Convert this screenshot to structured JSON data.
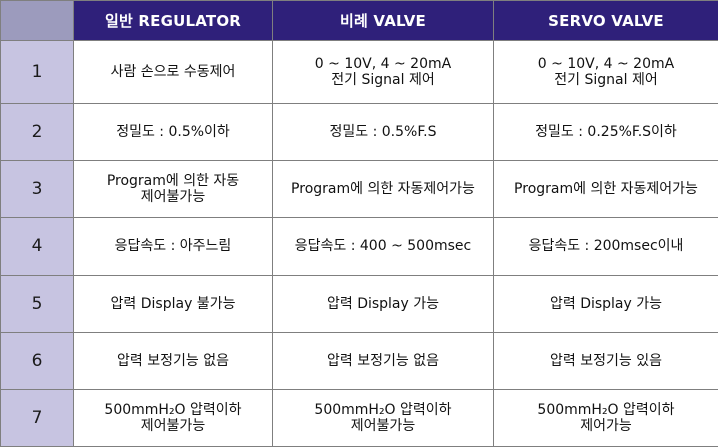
{
  "header": {
    "corner": "",
    "col1": "일반 REGULATOR",
    "col2": "비례 VALVE",
    "col3": "SERVO VALVE"
  },
  "rows": [
    {
      "num": "1",
      "c1": [
        "사람 손으로 수동제어"
      ],
      "c2": [
        "0 ~ 10V, 4 ~ 20mA",
        "전기 Signal 제어"
      ],
      "c3": [
        "0 ~ 10V, 4 ~ 20mA",
        "전기 Signal 제어"
      ]
    },
    {
      "num": "2",
      "c1": [
        "정밀도 : 0.5%이하"
      ],
      "c2": [
        "정밀도 : 0.5%F.S"
      ],
      "c3": [
        "정밀도 : 0.25%F.S이하"
      ]
    },
    {
      "num": "3",
      "c1": [
        "Program에 의한 자동",
        "제어불가능"
      ],
      "c2": [
        "Program에 의한 자동제어가능"
      ],
      "c3": [
        "Program에 의한 자동제어가능"
      ]
    },
    {
      "num": "4",
      "c1": [
        "응답속도 : 아주느림"
      ],
      "c2": [
        "응답속도 : 400 ~ 500msec"
      ],
      "c3": [
        "응답속도 : 200msec이내"
      ]
    },
    {
      "num": "5",
      "c1": [
        "압력 Display 불가능"
      ],
      "c2": [
        "압력 Display 가능"
      ],
      "c3": [
        "압력 Display 가능"
      ]
    },
    {
      "num": "6",
      "c1": [
        "압력 보정기능 없음"
      ],
      "c2": [
        "압력 보정기능 없음"
      ],
      "c3": [
        "압력 보정기능 있음"
      ]
    },
    {
      "num": "7",
      "c1": [
        "500mmH₂O 압력이하",
        "제어불가능"
      ],
      "c2": [
        "500mmH₂O 압력이하",
        "제어불가능"
      ],
      "c3": [
        "500mmH₂O 압력이하",
        "제어가능"
      ]
    }
  ],
  "colors": {
    "header_bg": "#2f207a",
    "corner_bg": "#9c9bbd",
    "number_bg": "#c7c4e1"
  }
}
